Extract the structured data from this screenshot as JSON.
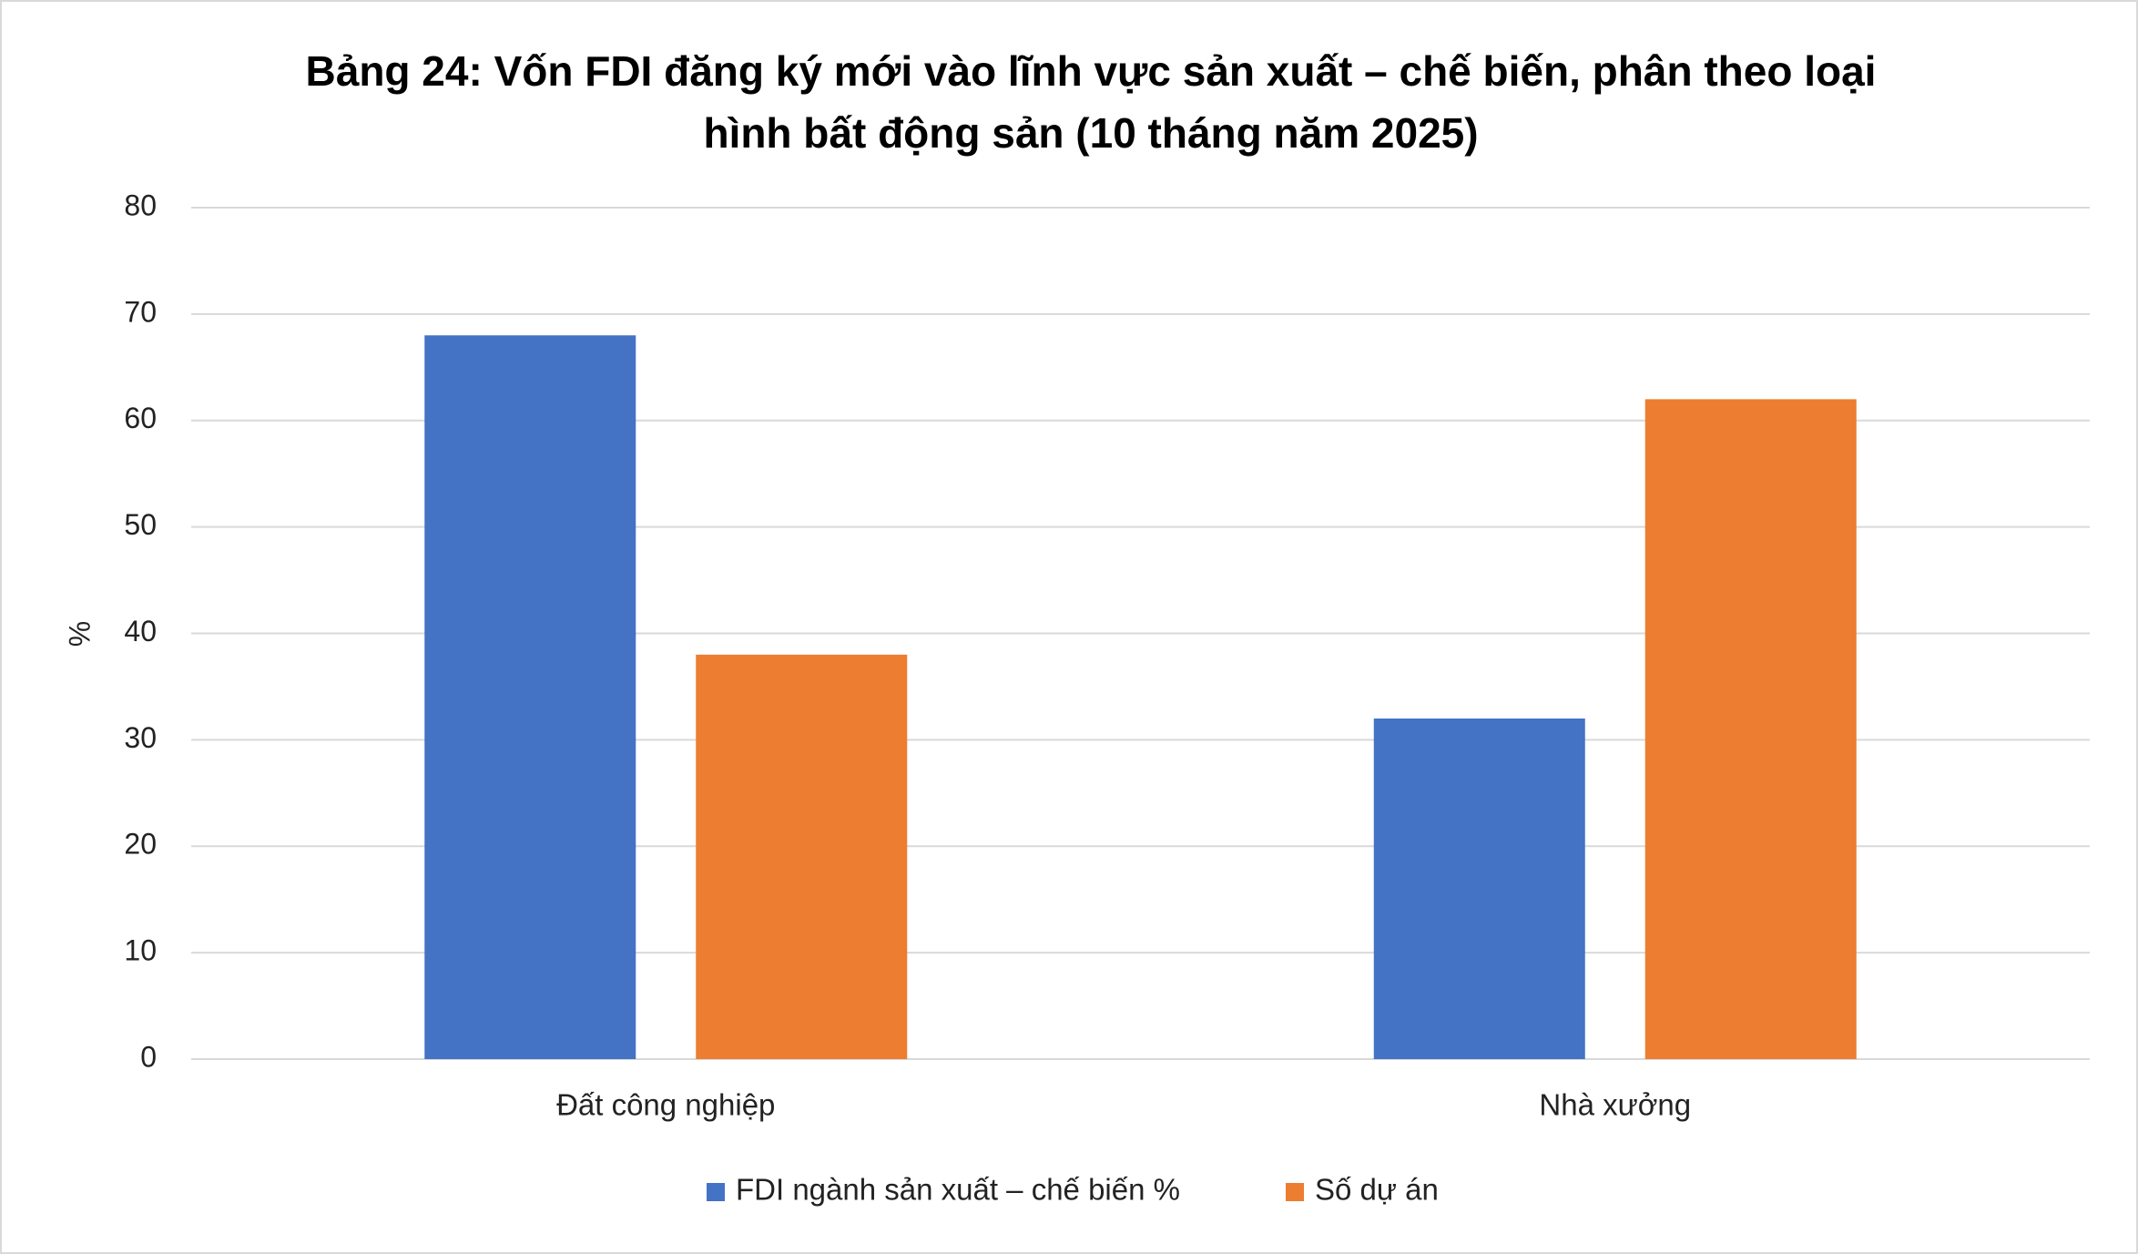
{
  "chart_data": {
    "type": "bar",
    "title": [
      "Bảng 24: Vốn FDI đăng ký mới vào lĩnh vực sản xuất – chế biến, phân theo loại",
      "hình bất động sản (10 tháng năm 2025)"
    ],
    "y_label": "%",
    "categories": [
      "Đất công nghiệp",
      "Nhà xưởng"
    ],
    "series": [
      {
        "name": "FDI ngành sản xuất – chế biến %",
        "color": "#4472c4",
        "values": [
          68,
          32
        ]
      },
      {
        "name": "Số dự án",
        "color": "#ed7d31",
        "values": [
          38,
          62
        ]
      }
    ],
    "ylim": [
      0,
      80
    ],
    "yticks": [
      0,
      10,
      20,
      30,
      40,
      50,
      60,
      70,
      80
    ],
    "grid": true,
    "legend": "bottom"
  }
}
